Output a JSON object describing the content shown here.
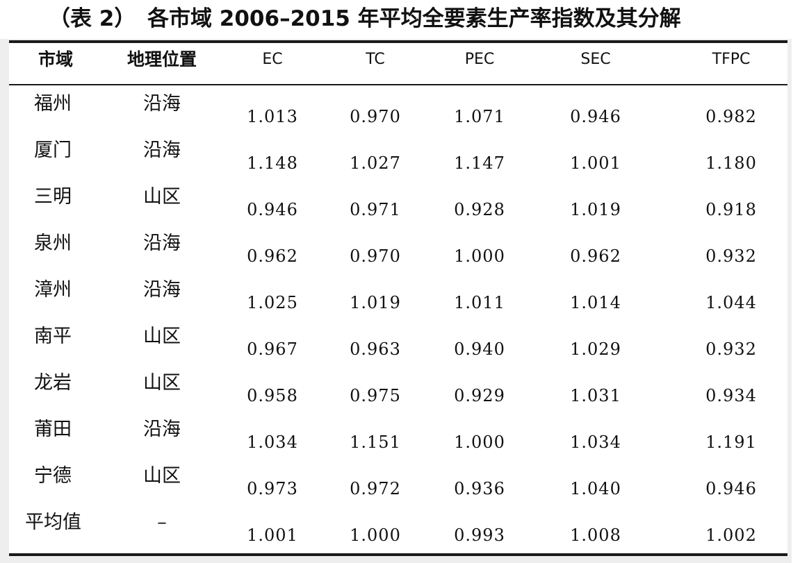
{
  "title": {
    "number": "（表 2）",
    "text": "各市域 2006–2015 年平均全要素生产率指数及其分解"
  },
  "table": {
    "headers": [
      "市域",
      "地理位置",
      "EC",
      "TC",
      "PEC",
      "SEC",
      "TFPC"
    ],
    "rows": [
      [
        "福州",
        "沿海",
        "1.013",
        "0.970",
        "1.071",
        "0.946",
        "0.982"
      ],
      [
        "厦门",
        "沿海",
        "1.148",
        "1.027",
        "1.147",
        "1.001",
        "1.180"
      ],
      [
        "三明",
        "山区",
        "0.946",
        "0.971",
        "0.928",
        "1.019",
        "0.918"
      ],
      [
        "泉州",
        "沿海",
        "0.962",
        "0.970",
        "1.000",
        "0.962",
        "0.932"
      ],
      [
        "漳州",
        "沿海",
        "1.025",
        "1.019",
        "1.011",
        "1.014",
        "1.044"
      ],
      [
        "南平",
        "山区",
        "0.967",
        "0.963",
        "0.940",
        "1.029",
        "0.932"
      ],
      [
        "龙岩",
        "山区",
        "0.958",
        "0.975",
        "0.929",
        "1.031",
        "0.934"
      ],
      [
        "莆田",
        "沿海",
        "1.034",
        "1.151",
        "1.000",
        "1.034",
        "1.191"
      ],
      [
        "宁德",
        "山区",
        "0.973",
        "0.972",
        "0.936",
        "1.040",
        "0.946"
      ],
      [
        "平均值",
        "–",
        "1.001",
        "1.000",
        "0.993",
        "1.008",
        "1.002"
      ]
    ]
  }
}
